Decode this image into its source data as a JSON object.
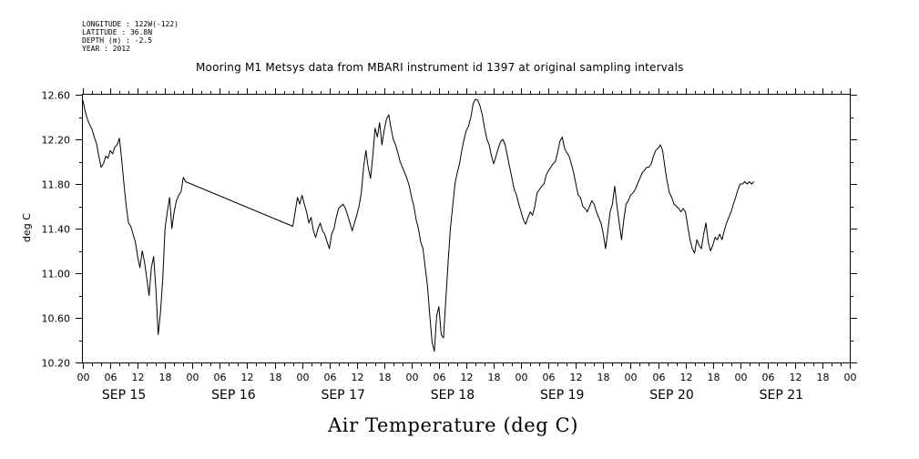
{
  "header": {
    "meta_lines": [
      "LONGITUDE : 122W(-122)",
      "LATITUDE : 36.8N",
      "DEPTH (m) : -2.5",
      "YEAR : 2012"
    ],
    "title": "Mooring M1 Metsys data from MBARI instrument id 1397 at original sampling intervals"
  },
  "chart_data": {
    "type": "line",
    "title": "Mooring M1 Metsys data from MBARI instrument id 1397 at original sampling intervals",
    "xlabel": "Air Temperature (deg C)",
    "ylabel": "deg C",
    "ylim": [
      10.2,
      12.6
    ],
    "yticks": [
      "10.20",
      "10.60",
      "11.00",
      "11.40",
      "11.80",
      "12.20",
      "12.60"
    ],
    "xlim_hours": [
      0,
      168
    ],
    "x_unit": "hours since SEP 15 00:00 (2012)",
    "hour_tick_labels": [
      "00",
      "06",
      "12",
      "18",
      "00",
      "06",
      "12",
      "18",
      "00",
      "06",
      "12",
      "18",
      "00",
      "06",
      "12",
      "18",
      "00",
      "06",
      "12",
      "18",
      "00",
      "06",
      "12",
      "18",
      "00",
      "06",
      "12",
      "18",
      "00"
    ],
    "day_labels": [
      "SEP 15",
      "SEP 16",
      "SEP 17",
      "SEP 18",
      "SEP 19",
      "SEP 20",
      "SEP 21"
    ],
    "grid": false,
    "series": [
      {
        "color": "#000000",
        "points": [
          [
            0,
            12.55
          ],
          [
            0.5,
            12.45
          ],
          [
            1,
            12.38
          ],
          [
            1.5,
            12.33
          ],
          [
            2,
            12.29
          ],
          [
            2.5,
            12.22
          ],
          [
            3,
            12.16
          ],
          [
            3.5,
            12.05
          ],
          [
            4,
            11.95
          ],
          [
            4.5,
            11.98
          ],
          [
            5,
            12.05
          ],
          [
            5.5,
            12.03
          ],
          [
            6,
            12.1
          ],
          [
            6.5,
            12.07
          ],
          [
            7,
            12.13
          ],
          [
            7.5,
            12.15
          ],
          [
            8,
            12.21
          ],
          [
            8.5,
            12.02
          ],
          [
            9,
            11.8
          ],
          [
            9.5,
            11.6
          ],
          [
            10,
            11.45
          ],
          [
            10.5,
            11.42
          ],
          [
            11,
            11.35
          ],
          [
            11.5,
            11.28
          ],
          [
            12,
            11.15
          ],
          [
            12.5,
            11.05
          ],
          [
            13,
            11.2
          ],
          [
            13.5,
            11.1
          ],
          [
            14,
            10.95
          ],
          [
            14.5,
            10.8
          ],
          [
            15,
            11.05
          ],
          [
            15.5,
            11.15
          ],
          [
            16,
            10.85
          ],
          [
            16.5,
            10.45
          ],
          [
            17,
            10.65
          ],
          [
            17.5,
            10.95
          ],
          [
            18,
            11.4
          ],
          [
            18.5,
            11.55
          ],
          [
            19,
            11.68
          ],
          [
            19.5,
            11.4
          ],
          [
            20,
            11.55
          ],
          [
            20.5,
            11.65
          ],
          [
            21,
            11.7
          ],
          [
            21.5,
            11.73
          ],
          [
            22,
            11.86
          ],
          [
            22.5,
            11.82
          ],
          [
            46,
            11.42
          ],
          [
            46.5,
            11.55
          ],
          [
            47,
            11.68
          ],
          [
            47.5,
            11.62
          ],
          [
            48,
            11.7
          ],
          [
            48.5,
            11.62
          ],
          [
            49,
            11.55
          ],
          [
            49.5,
            11.45
          ],
          [
            50,
            11.5
          ],
          [
            50.5,
            11.38
          ],
          [
            51,
            11.32
          ],
          [
            51.5,
            11.4
          ],
          [
            52,
            11.45
          ],
          [
            52.5,
            11.38
          ],
          [
            53,
            11.35
          ],
          [
            53.5,
            11.28
          ],
          [
            54,
            11.22
          ],
          [
            54.5,
            11.35
          ],
          [
            55,
            11.4
          ],
          [
            55.5,
            11.5
          ],
          [
            56,
            11.58
          ],
          [
            56.5,
            11.6
          ],
          [
            57,
            11.62
          ],
          [
            57.5,
            11.58
          ],
          [
            58,
            11.52
          ],
          [
            58.5,
            11.45
          ],
          [
            59,
            11.38
          ],
          [
            59.5,
            11.45
          ],
          [
            60,
            11.52
          ],
          [
            60.5,
            11.6
          ],
          [
            61,
            11.72
          ],
          [
            61.5,
            11.95
          ],
          [
            62,
            12.1
          ],
          [
            62.5,
            11.95
          ],
          [
            63,
            11.85
          ],
          [
            63.5,
            12.05
          ],
          [
            64,
            12.3
          ],
          [
            64.5,
            12.22
          ],
          [
            65,
            12.35
          ],
          [
            65.5,
            12.15
          ],
          [
            66,
            12.28
          ],
          [
            66.5,
            12.38
          ],
          [
            67,
            12.42
          ],
          [
            67.5,
            12.3
          ],
          [
            68,
            12.2
          ],
          [
            68.5,
            12.15
          ],
          [
            69,
            12.08
          ],
          [
            69.5,
            12.0
          ],
          [
            70,
            11.95
          ],
          [
            70.5,
            11.9
          ],
          [
            71,
            11.85
          ],
          [
            71.5,
            11.78
          ],
          [
            72,
            11.68
          ],
          [
            72.5,
            11.6
          ],
          [
            73,
            11.48
          ],
          [
            73.5,
            11.4
          ],
          [
            74,
            11.28
          ],
          [
            74.5,
            11.22
          ],
          [
            75,
            11.05
          ],
          [
            75.5,
            10.88
          ],
          [
            76,
            10.62
          ],
          [
            76.5,
            10.38
          ],
          [
            77,
            10.3
          ],
          [
            77.5,
            10.62
          ],
          [
            78,
            10.7
          ],
          [
            78.5,
            10.45
          ],
          [
            79,
            10.42
          ],
          [
            79.5,
            10.75
          ],
          [
            80,
            11.1
          ],
          [
            80.5,
            11.4
          ],
          [
            81,
            11.6
          ],
          [
            81.5,
            11.8
          ],
          [
            82,
            11.9
          ],
          [
            82.5,
            11.98
          ],
          [
            83,
            12.1
          ],
          [
            83.5,
            12.2
          ],
          [
            84,
            12.28
          ],
          [
            84.5,
            12.32
          ],
          [
            85,
            12.4
          ],
          [
            85.5,
            12.52
          ],
          [
            86,
            12.56
          ],
          [
            86.5,
            12.55
          ],
          [
            87,
            12.5
          ],
          [
            87.5,
            12.42
          ],
          [
            88,
            12.3
          ],
          [
            88.5,
            12.2
          ],
          [
            89,
            12.15
          ],
          [
            89.5,
            12.05
          ],
          [
            90,
            11.98
          ],
          [
            90.5,
            12.05
          ],
          [
            91,
            12.12
          ],
          [
            91.5,
            12.18
          ],
          [
            92,
            12.2
          ],
          [
            92.5,
            12.15
          ],
          [
            93,
            12.05
          ],
          [
            93.5,
            11.95
          ],
          [
            94,
            11.85
          ],
          [
            94.5,
            11.75
          ],
          [
            95,
            11.7
          ],
          [
            95.5,
            11.62
          ],
          [
            96,
            11.55
          ],
          [
            96.5,
            11.48
          ],
          [
            97,
            11.44
          ],
          [
            97.5,
            11.5
          ],
          [
            98,
            11.55
          ],
          [
            98.5,
            11.52
          ],
          [
            99,
            11.6
          ],
          [
            99.5,
            11.72
          ],
          [
            100,
            11.75
          ],
          [
            100.5,
            11.78
          ],
          [
            101,
            11.8
          ],
          [
            101.5,
            11.88
          ],
          [
            102,
            11.92
          ],
          [
            102.5,
            11.95
          ],
          [
            103,
            11.98
          ],
          [
            103.5,
            12.0
          ],
          [
            104,
            12.08
          ],
          [
            104.5,
            12.18
          ],
          [
            105,
            12.22
          ],
          [
            105.5,
            12.12
          ],
          [
            106,
            12.08
          ],
          [
            106.5,
            12.05
          ],
          [
            107,
            11.98
          ],
          [
            107.5,
            11.9
          ],
          [
            108,
            11.8
          ],
          [
            108.5,
            11.7
          ],
          [
            109,
            11.68
          ],
          [
            109.5,
            11.6
          ],
          [
            110,
            11.58
          ],
          [
            110.5,
            11.55
          ],
          [
            111,
            11.6
          ],
          [
            111.5,
            11.65
          ],
          [
            112,
            11.62
          ],
          [
            112.5,
            11.55
          ],
          [
            113,
            11.5
          ],
          [
            113.5,
            11.45
          ],
          [
            114,
            11.35
          ],
          [
            114.5,
            11.22
          ],
          [
            115,
            11.38
          ],
          [
            115.5,
            11.55
          ],
          [
            116,
            11.62
          ],
          [
            116.5,
            11.78
          ],
          [
            117,
            11.6
          ],
          [
            117.5,
            11.45
          ],
          [
            118,
            11.3
          ],
          [
            118.5,
            11.48
          ],
          [
            119,
            11.62
          ],
          [
            119.5,
            11.65
          ],
          [
            120,
            11.7
          ],
          [
            120.5,
            11.72
          ],
          [
            121,
            11.75
          ],
          [
            121.5,
            11.8
          ],
          [
            122,
            11.85
          ],
          [
            122.5,
            11.9
          ],
          [
            123,
            11.92
          ],
          [
            123.5,
            11.95
          ],
          [
            124,
            11.95
          ],
          [
            124.5,
            11.98
          ],
          [
            125,
            12.05
          ],
          [
            125.5,
            12.1
          ],
          [
            126,
            12.12
          ],
          [
            126.5,
            12.15
          ],
          [
            127,
            12.1
          ],
          [
            127.5,
            11.95
          ],
          [
            128,
            11.82
          ],
          [
            128.5,
            11.72
          ],
          [
            129,
            11.68
          ],
          [
            129.5,
            11.62
          ],
          [
            130,
            11.6
          ],
          [
            130.5,
            11.58
          ],
          [
            131,
            11.55
          ],
          [
            131.5,
            11.58
          ],
          [
            132,
            11.55
          ],
          [
            132.5,
            11.42
          ],
          [
            133,
            11.3
          ],
          [
            133.5,
            11.22
          ],
          [
            134,
            11.18
          ],
          [
            134.5,
            11.3
          ],
          [
            135,
            11.25
          ],
          [
            135.5,
            11.22
          ],
          [
            136,
            11.35
          ],
          [
            136.5,
            11.45
          ],
          [
            137,
            11.28
          ],
          [
            137.5,
            11.2
          ],
          [
            138,
            11.25
          ],
          [
            138.5,
            11.32
          ],
          [
            139,
            11.3
          ],
          [
            139.5,
            11.35
          ],
          [
            140,
            11.3
          ],
          [
            140.5,
            11.38
          ],
          [
            141,
            11.45
          ],
          [
            141.5,
            11.5
          ],
          [
            142,
            11.55
          ],
          [
            142.5,
            11.62
          ],
          [
            143,
            11.68
          ],
          [
            143.5,
            11.75
          ],
          [
            144,
            11.8
          ],
          [
            144.5,
            11.8
          ],
          [
            145,
            11.82
          ],
          [
            145.5,
            11.8
          ],
          [
            146,
            11.82
          ],
          [
            146.5,
            11.8
          ],
          [
            147,
            11.82
          ]
        ]
      }
    ]
  }
}
